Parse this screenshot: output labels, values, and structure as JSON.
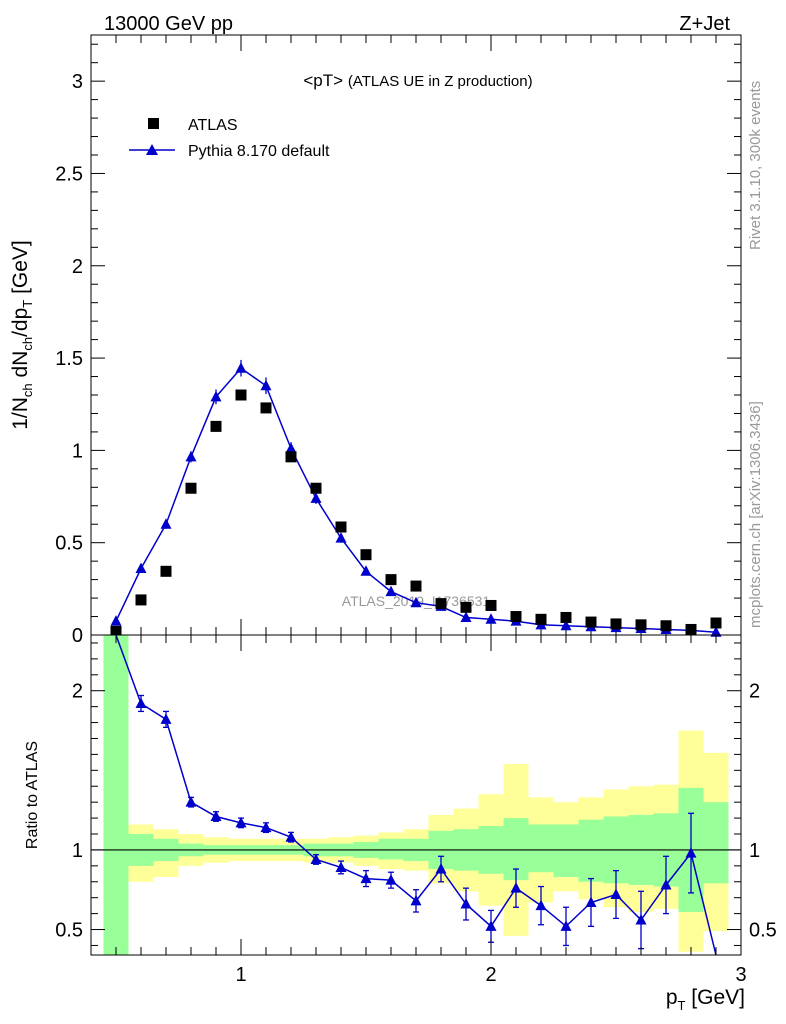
{
  "header": {
    "left": "13000 GeV pp",
    "right": "Z+Jet"
  },
  "side_labels": {
    "rivet": "Rivet 3.1.10,  300k events",
    "mcplots": "mcplots.cern.ch [arXiv:1306.3436]"
  },
  "watermark": "ATLAS_2019_I1736531",
  "chart_data": [
    {
      "type": "scatter",
      "title": "<pT>",
      "title_suffix": "(ATLAS UE in Z production)",
      "ylabel": "1/N",
      "ylabel_parts": {
        "sub_ch": "ch",
        "mid": " dN",
        "sub_ch2": "ch",
        "mid2": "/dp",
        "sub_T": "T",
        "unit": " [GeV]"
      },
      "xlim": [
        0.4,
        3.0
      ],
      "ylim": [
        0,
        3.25
      ],
      "yticks": [
        0,
        0.5,
        1,
        1.5,
        2,
        2.5,
        3
      ],
      "ytick_labels": [
        "0",
        "0.5",
        "1",
        "1.5",
        "2",
        "2.5",
        "3"
      ],
      "legend_position": "top-left",
      "series": [
        {
          "name": "ATLAS",
          "color": "#000000",
          "marker": "square",
          "x": [
            0.5,
            0.6,
            0.7,
            0.8,
            0.9,
            1.0,
            1.1,
            1.2,
            1.3,
            1.4,
            1.5,
            1.6,
            1.7,
            1.8,
            1.9,
            2.0,
            2.1,
            2.2,
            2.3,
            2.4,
            2.5,
            2.6,
            2.7,
            2.8,
            2.9
          ],
          "y": [
            0.02,
            0.19,
            0.345,
            0.795,
            1.13,
            1.3,
            1.23,
            0.965,
            0.795,
            0.585,
            0.435,
            0.3,
            0.265,
            0.17,
            0.15,
            0.16,
            0.1,
            0.085,
            0.095,
            0.07,
            0.06,
            0.055,
            0.05,
            0.03,
            0.065
          ]
        },
        {
          "name": "Pythia 8.170 default",
          "color": "#0000cc",
          "marker": "triangle",
          "x": [
            0.5,
            0.6,
            0.7,
            0.8,
            0.9,
            1.0,
            1.1,
            1.2,
            1.3,
            1.4,
            1.5,
            1.6,
            1.7,
            1.8,
            1.9,
            2.0,
            2.1,
            2.2,
            2.3,
            2.4,
            2.5,
            2.6,
            2.7,
            2.8,
            2.9
          ],
          "y": [
            0.075,
            0.36,
            0.6,
            0.965,
            1.29,
            1.445,
            1.35,
            1.01,
            0.74,
            0.525,
            0.345,
            0.235,
            0.175,
            0.155,
            0.095,
            0.085,
            0.075,
            0.055,
            0.05,
            0.045,
            0.04,
            0.035,
            0.03,
            0.025,
            0.015
          ],
          "err": [
            0.02,
            0.02,
            0.025,
            0.03,
            0.04,
            0.045,
            0.045,
            0.035,
            0.03,
            0.025,
            0.02,
            0.015,
            0.01,
            0.01,
            0.01,
            0.01,
            0.01,
            0.008,
            0.008,
            0.008,
            0.008,
            0.006,
            0.006,
            0.006,
            0.005
          ]
        }
      ]
    },
    {
      "type": "line",
      "ylabel": "Ratio to ATLAS",
      "xlabel": "p",
      "xlabel_sub": "T",
      "xlabel_unit": " [GeV]",
      "xlim": [
        0.4,
        3.0
      ],
      "ylim": [
        0.34,
        2.35
      ],
      "xticks": [
        1,
        2,
        3
      ],
      "xtick_labels": [
        "1",
        "2",
        "3"
      ],
      "yticks": [
        0.5,
        1,
        2
      ],
      "ytick_labels": [
        "0.5",
        "1",
        "2"
      ],
      "reference_line": 1,
      "bands": {
        "x_edges": [
          0.45,
          0.55,
          0.65,
          0.75,
          0.85,
          0.95,
          1.05,
          1.15,
          1.25,
          1.35,
          1.45,
          1.55,
          1.65,
          1.75,
          1.85,
          1.95,
          2.05,
          2.15,
          2.25,
          2.35,
          2.45,
          2.55,
          2.65,
          2.75,
          2.85,
          2.95
        ],
        "stat_color": "#99ff99",
        "syst_color": "#ffff99",
        "stat_lo": [
          0.34,
          0.9,
          0.93,
          0.96,
          0.97,
          0.97,
          0.97,
          0.97,
          0.96,
          0.96,
          0.95,
          0.94,
          0.93,
          0.88,
          0.87,
          0.85,
          0.81,
          0.86,
          0.83,
          0.8,
          0.79,
          0.78,
          0.77,
          0.61,
          0.79
        ],
        "stat_hi": [
          2.35,
          1.1,
          1.07,
          1.04,
          1.03,
          1.03,
          1.03,
          1.03,
          1.04,
          1.04,
          1.05,
          1.07,
          1.07,
          1.12,
          1.13,
          1.15,
          1.2,
          1.16,
          1.16,
          1.19,
          1.21,
          1.22,
          1.23,
          1.39,
          1.3
        ],
        "syst_lo": [
          0.34,
          0.8,
          0.83,
          0.9,
          0.92,
          0.93,
          0.93,
          0.93,
          0.92,
          0.92,
          0.9,
          0.88,
          0.87,
          0.79,
          0.74,
          0.65,
          0.46,
          0.67,
          0.74,
          0.69,
          0.64,
          0.61,
          0.63,
          0.36,
          0.49
        ],
        "syst_hi": [
          2.35,
          1.16,
          1.13,
          1.1,
          1.08,
          1.07,
          1.07,
          1.07,
          1.07,
          1.08,
          1.09,
          1.11,
          1.13,
          1.22,
          1.26,
          1.35,
          1.54,
          1.33,
          1.3,
          1.33,
          1.38,
          1.4,
          1.41,
          1.75,
          1.61
        ]
      },
      "series": [
        {
          "name": "Pythia 8.170 default",
          "color": "#0000cc",
          "x": [
            0.5,
            0.6,
            0.7,
            0.8,
            0.9,
            1.0,
            1.1,
            1.2,
            1.3,
            1.4,
            1.5,
            1.6,
            1.7,
            1.8,
            1.9,
            2.0,
            2.1,
            2.2,
            2.3,
            2.4,
            2.5,
            2.6,
            2.7,
            2.8,
            2.9
          ],
          "y": [
            3.5,
            1.92,
            1.82,
            1.3,
            1.21,
            1.17,
            1.14,
            1.08,
            0.94,
            0.89,
            0.82,
            0.81,
            0.68,
            0.88,
            0.66,
            0.52,
            0.76,
            0.65,
            0.52,
            0.67,
            0.72,
            0.56,
            0.78,
            0.98,
            0.25
          ],
          "err": [
            0.3,
            0.05,
            0.05,
            0.03,
            0.03,
            0.03,
            0.03,
            0.03,
            0.03,
            0.04,
            0.05,
            0.05,
            0.07,
            0.08,
            0.1,
            0.1,
            0.12,
            0.12,
            0.12,
            0.15,
            0.15,
            0.18,
            0.18,
            0.25,
            0.3
          ]
        }
      ]
    }
  ]
}
